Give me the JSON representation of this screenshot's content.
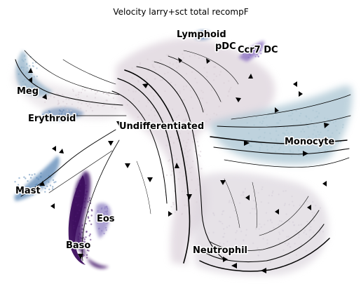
{
  "chart_data": {
    "type": "scatter",
    "title": "Velocity larry+sct total recompF",
    "xlabel": "",
    "ylabel": "",
    "grid": false,
    "legend": "on data",
    "clusters": [
      {
        "name": "Lymphoid",
        "color": "#6f8fb8"
      },
      {
        "name": "pDC",
        "color": "#7b6fb5"
      },
      {
        "name": "Ccr7 DC",
        "color": "#8a6fc0"
      },
      {
        "name": "Meg",
        "color": "#8fb0c8"
      },
      {
        "name": "Erythroid",
        "color": "#5f83b0"
      },
      {
        "name": "Undifferentiated",
        "color": "#d8cdd6"
      },
      {
        "name": "Monocyte",
        "color": "#a9c4d2"
      },
      {
        "name": "Mast",
        "color": "#5a86b5"
      },
      {
        "name": "Eos",
        "color": "#8a7cc0"
      },
      {
        "name": "Baso",
        "color": "#4a1a6e"
      },
      {
        "name": "Neutrophil",
        "color": "#d6d0da"
      }
    ]
  }
}
